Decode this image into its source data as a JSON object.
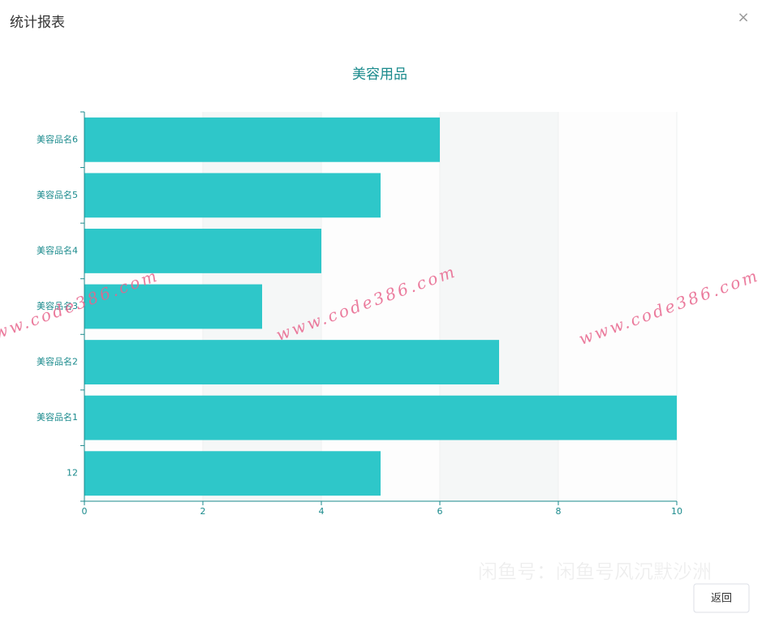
{
  "dialog": {
    "title": "统计报表",
    "close": "×",
    "button": "返回"
  },
  "chart_data": {
    "type": "bar",
    "orientation": "horizontal",
    "title": "美容用品",
    "categories": [
      "12",
      "美容品名1",
      "美容品名2",
      "美容品名3",
      "美容品名4",
      "美容品名5",
      "美容品名6"
    ],
    "values": [
      5,
      10,
      7,
      3,
      4,
      5,
      6
    ],
    "color": "#2ec7c9",
    "xlim": [
      0,
      10
    ],
    "xticks": [
      0,
      2,
      4,
      6,
      8,
      10
    ],
    "split_area": true,
    "axis_color": "#1a8a8c"
  },
  "watermarks": [
    "www.code386.com",
    "www.code386.com",
    "www.code386.com",
    "闲鱼号：闲鱼号风沉默沙洲"
  ]
}
